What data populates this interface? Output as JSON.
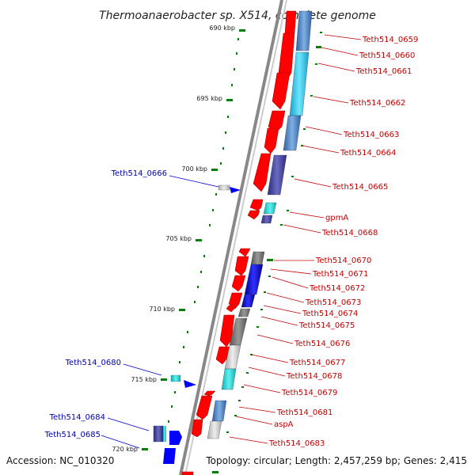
{
  "title": "Thermoanaerobacter sp. X514, complete genome",
  "accession": "Accession: NC_010320",
  "topology": "Topology: circular; Length: 2,457,259 bp; Genes: 2,415",
  "scale_labels": [
    "690 kbp",
    "695 kbp",
    "700 kbp",
    "705 kbp",
    "710 kbp",
    "715 kbp",
    "720 kbp"
  ],
  "genes_right": [
    "Teth514_0659",
    "Teth514_0660",
    "Teth514_0661",
    "Teth514_0662",
    "Teth514_0663",
    "Teth514_0664",
    "Teth514_0665",
    "gpmA",
    "Teth514_0668",
    "Teth514_0670",
    "Teth514_0671",
    "Teth514_0672",
    "Teth514_0673",
    "Teth514_0674",
    "Teth514_0675",
    "Teth514_0676",
    "Teth514_0677",
    "Teth514_0678",
    "Teth514_0679",
    "Teth514_0681",
    "aspA",
    "Teth514_0683"
  ],
  "genes_left": [
    "Teth514_0666",
    "Teth514_0680",
    "Teth514_0684",
    "Teth514_0685"
  ],
  "colors": {
    "forward_gene": "#ff0000",
    "reverse_gene": "#0000ff",
    "right_label": "#c00000",
    "left_label": "#0000aa",
    "tick": "#008000",
    "backbone": "#888888"
  }
}
